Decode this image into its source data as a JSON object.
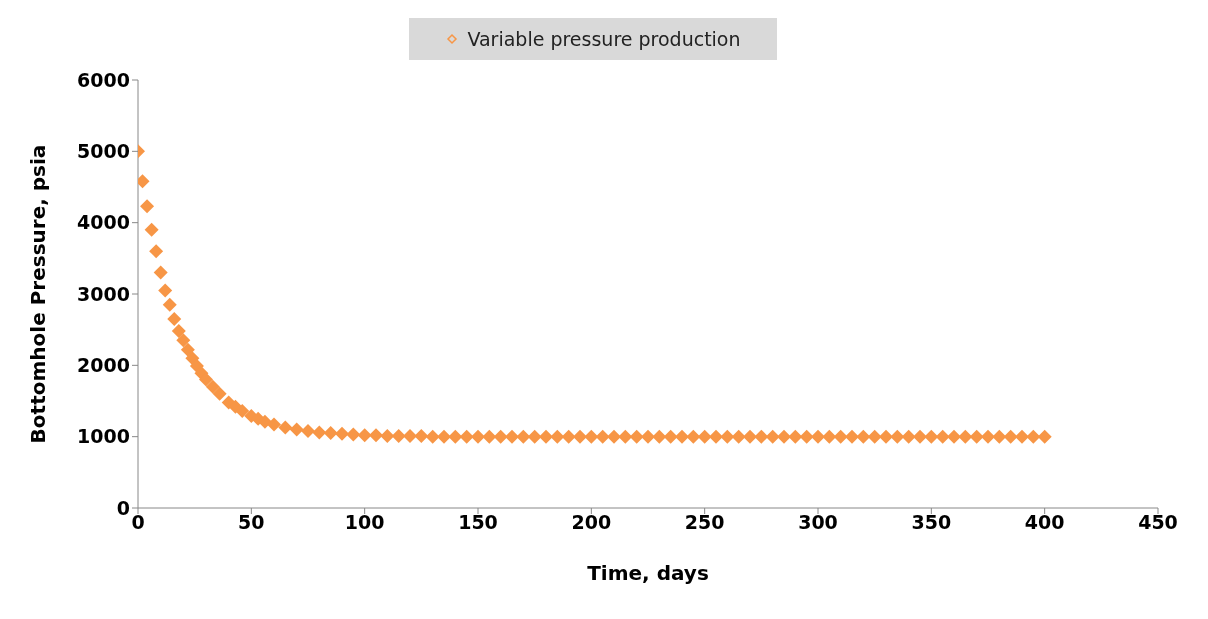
{
  "chart_data": {
    "type": "scatter",
    "xlabel": "Time, days",
    "ylabel": "Bottomhole Pressure, psia",
    "x": [
      0,
      2,
      4,
      6,
      8,
      10,
      12,
      14,
      16,
      18,
      20,
      22,
      24,
      26,
      28,
      30,
      33,
      36,
      40,
      43,
      46,
      50,
      53,
      56,
      60,
      65,
      70,
      75,
      80,
      85,
      90,
      95,
      100,
      105,
      110,
      115,
      120,
      125,
      130,
      135,
      140,
      145,
      150,
      155,
      160,
      165,
      170,
      175,
      180,
      185,
      190,
      195,
      200,
      205,
      210,
      215,
      220,
      225,
      230,
      235,
      240,
      245,
      250,
      255,
      260,
      265,
      270,
      275,
      280,
      285,
      290,
      295,
      300,
      305,
      310,
      315,
      320,
      325,
      330,
      335,
      340,
      345,
      350,
      355,
      360,
      365,
      370,
      375,
      380,
      385,
      390,
      395,
      400
    ],
    "series": [
      {
        "name": "Variable pressure production",
        "color": "#f79646",
        "values": [
          5000,
          4580,
          4230,
          3900,
          3600,
          3300,
          3050,
          2850,
          2650,
          2480,
          2350,
          2220,
          2100,
          1990,
          1890,
          1800,
          1700,
          1600,
          1480,
          1420,
          1360,
          1290,
          1250,
          1210,
          1170,
          1130,
          1100,
          1080,
          1060,
          1050,
          1040,
          1030,
          1020,
          1020,
          1010,
          1010,
          1010,
          1010,
          1000,
          1000,
          1000,
          1000,
          1000,
          1000,
          1000,
          1000,
          1000,
          1000,
          1000,
          1000,
          1000,
          1000,
          1000,
          1000,
          1000,
          1000,
          1000,
          1000,
          1000,
          1000,
          1000,
          1000,
          1000,
          1000,
          1000,
          1000,
          1000,
          1000,
          1000,
          1000,
          1000,
          1000,
          1000,
          1000,
          1000,
          1000,
          1000,
          1000,
          1000,
          1000,
          1000,
          1000,
          1000,
          1000,
          1000,
          1000,
          1000,
          1000,
          1000,
          1000,
          1000,
          1000,
          1000
        ]
      }
    ],
    "xlim": [
      0,
      450
    ],
    "xticks": [
      0,
      50,
      100,
      150,
      200,
      250,
      300,
      350,
      400,
      450
    ],
    "ylim": [
      0,
      6000
    ],
    "yticks": [
      0,
      1000,
      2000,
      3000,
      4000,
      5000,
      6000
    ],
    "grid": false,
    "legend": "top",
    "marker": "diamond"
  }
}
